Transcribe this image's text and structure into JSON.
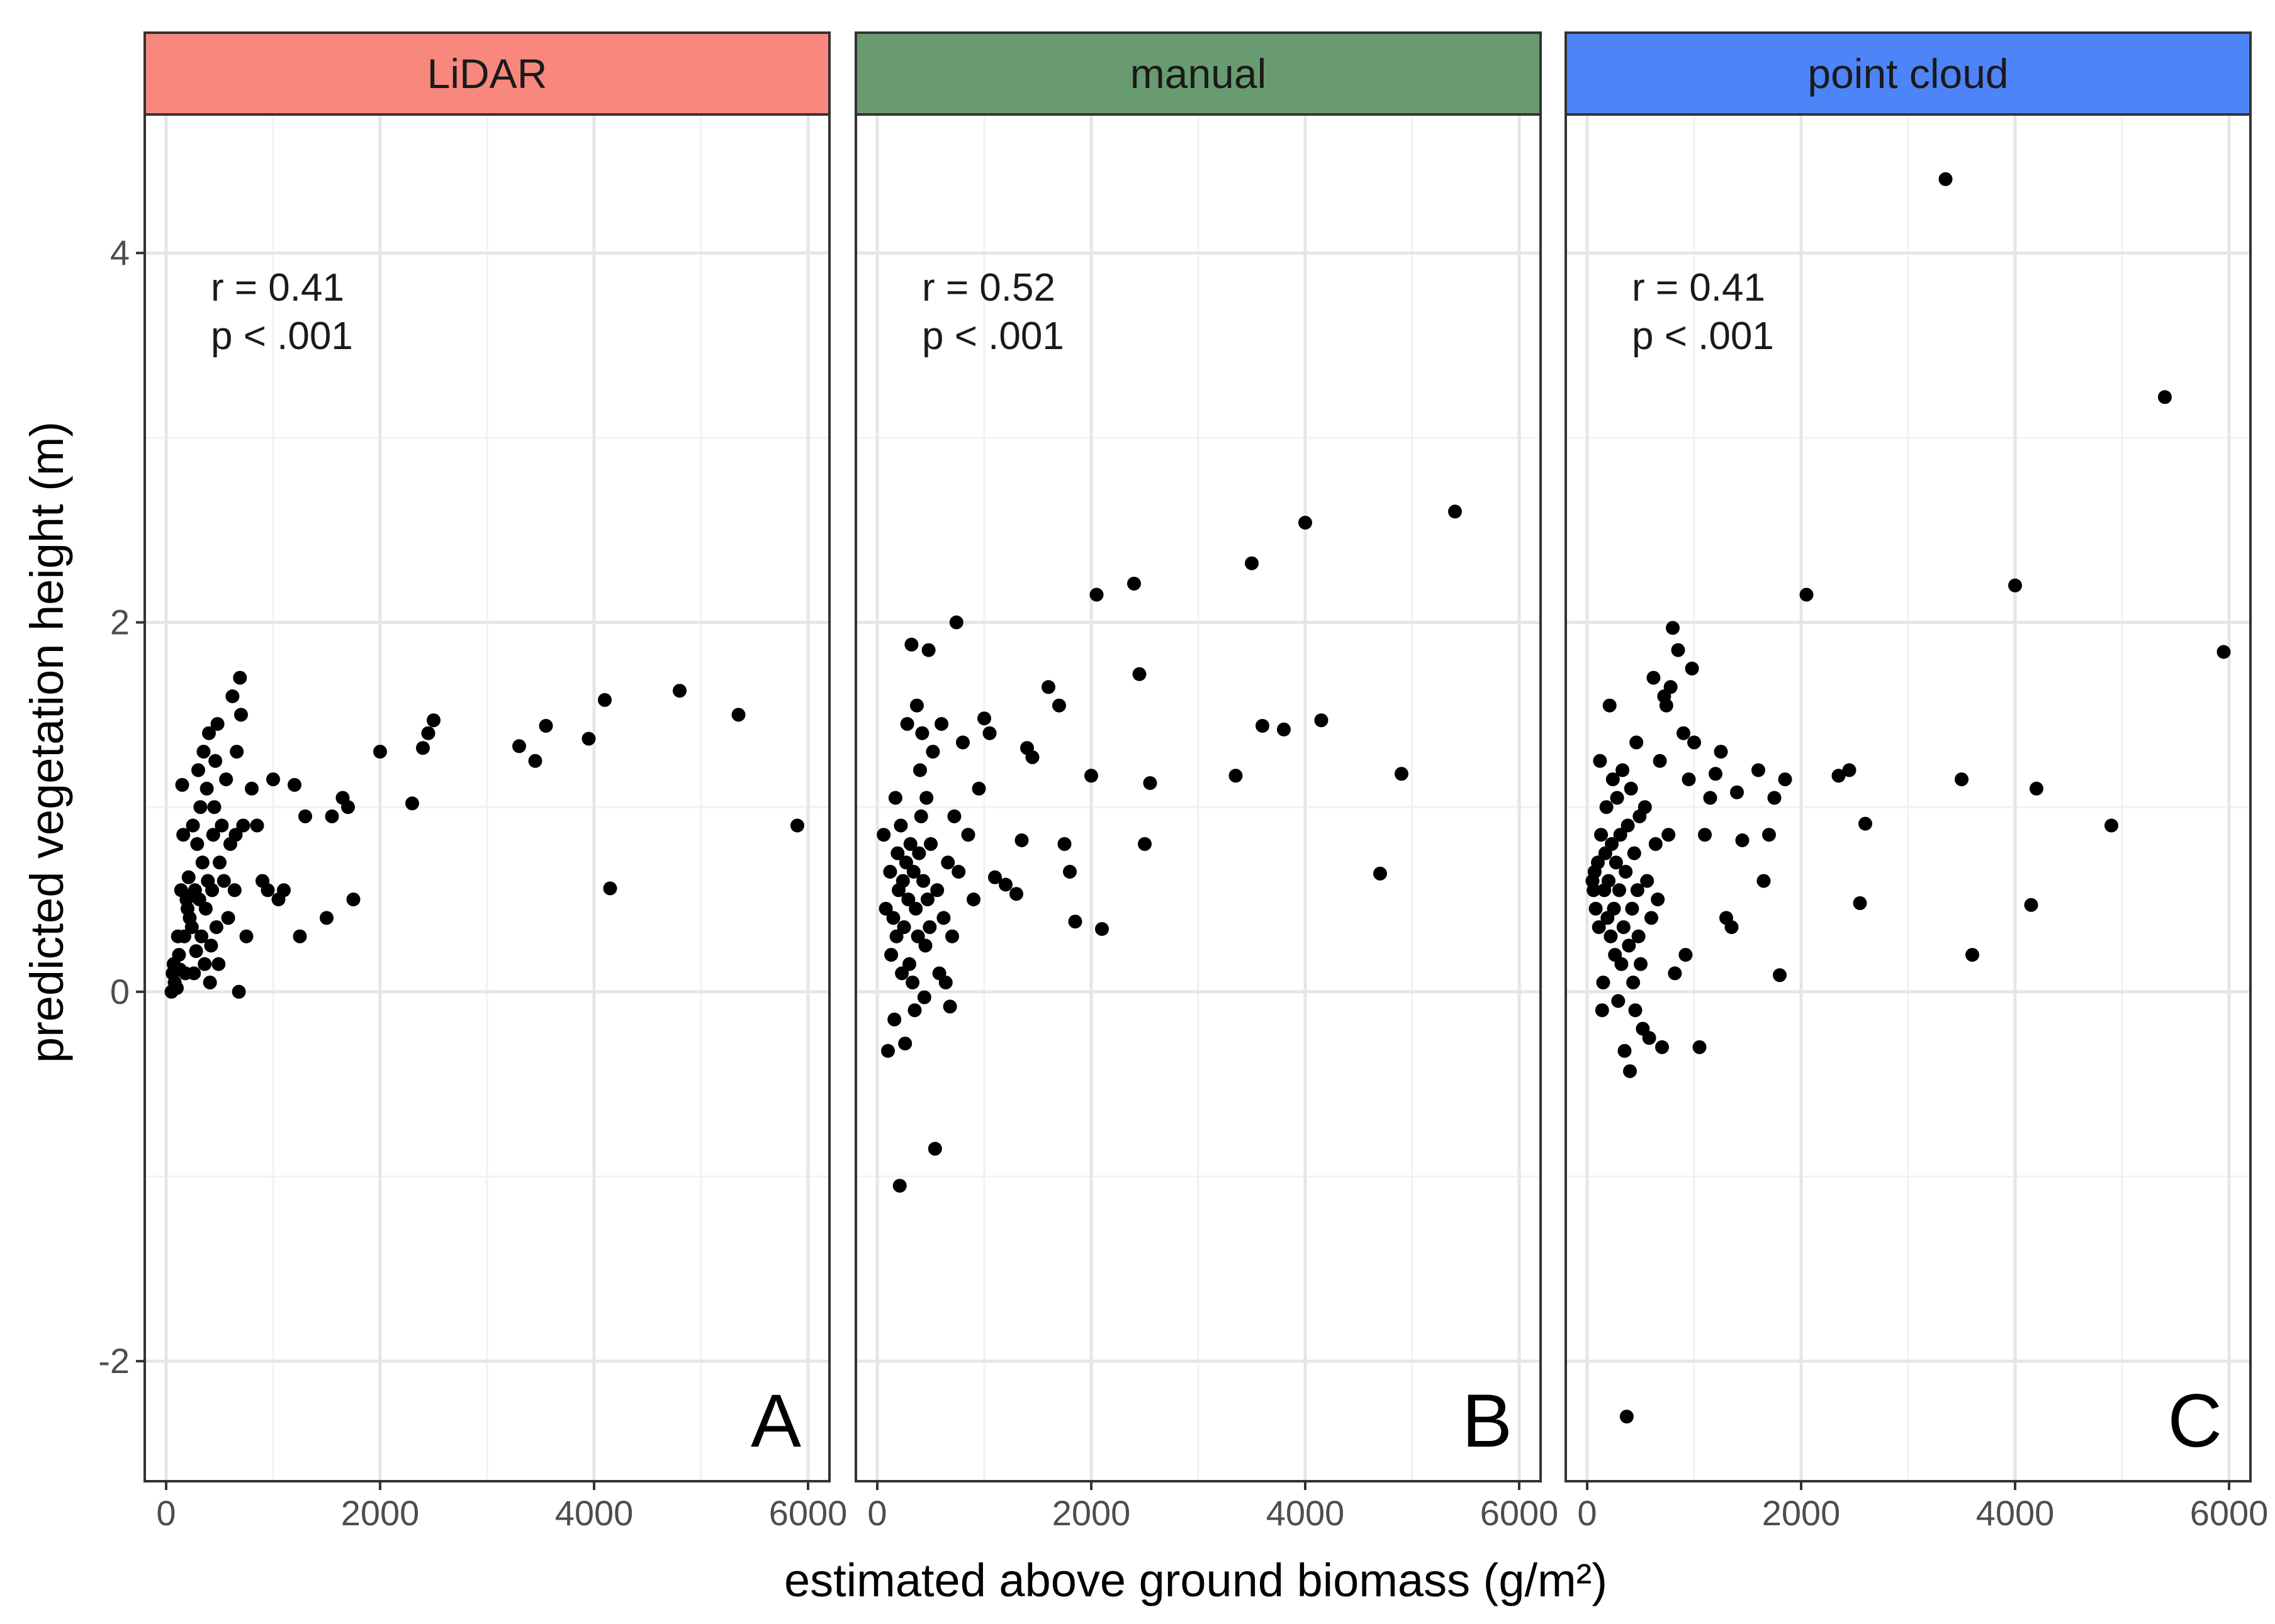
{
  "chart_data": {
    "type": "scatter",
    "layout": "faceted, 3 panels sharing axes",
    "xlabel": "estimated above ground biomass (g/m²)",
    "ylabel": "predicted vegetation height (m)",
    "xlim": [
      -200,
      6200
    ],
    "ylim": [
      -2.65,
      4.75
    ],
    "x_ticks": [
      0,
      2000,
      4000,
      6000
    ],
    "y_ticks": [
      -2,
      0,
      2,
      4
    ],
    "grid": true,
    "panels": [
      {
        "strip": "LiDAR",
        "strip_color": "#F8877D",
        "letter": "A",
        "stat_r": "r = 0.41",
        "stat_p": "p < .001",
        "points": [
          [
            50,
            0.0
          ],
          [
            60,
            0.1
          ],
          [
            70,
            0.15
          ],
          [
            80,
            0.05
          ],
          [
            100,
            0.02
          ],
          [
            110,
            0.3
          ],
          [
            120,
            0.2
          ],
          [
            130,
            0.12
          ],
          [
            140,
            0.55
          ],
          [
            150,
            1.12
          ],
          [
            160,
            0.85
          ],
          [
            170,
            0.3
          ],
          [
            180,
            0.1
          ],
          [
            190,
            0.5
          ],
          [
            200,
            0.45
          ],
          [
            210,
            0.62
          ],
          [
            220,
            0.4
          ],
          [
            230,
            0.52
          ],
          [
            240,
            0.35
          ],
          [
            250,
            0.9
          ],
          [
            260,
            0.1
          ],
          [
            270,
            0.55
          ],
          [
            280,
            0.22
          ],
          [
            290,
            0.8
          ],
          [
            300,
            1.2
          ],
          [
            310,
            0.5
          ],
          [
            320,
            1.0
          ],
          [
            330,
            0.3
          ],
          [
            340,
            0.7
          ],
          [
            350,
            1.3
          ],
          [
            360,
            0.15
          ],
          [
            370,
            0.45
          ],
          [
            380,
            1.1
          ],
          [
            390,
            0.6
          ],
          [
            400,
            1.4
          ],
          [
            410,
            0.05
          ],
          [
            420,
            0.25
          ],
          [
            430,
            0.55
          ],
          [
            440,
            0.85
          ],
          [
            450,
            1.0
          ],
          [
            460,
            1.25
          ],
          [
            470,
            0.35
          ],
          [
            480,
            1.45
          ],
          [
            490,
            0.15
          ],
          [
            500,
            0.7
          ],
          [
            520,
            0.9
          ],
          [
            540,
            0.6
          ],
          [
            560,
            1.15
          ],
          [
            580,
            0.4
          ],
          [
            600,
            0.8
          ],
          [
            620,
            1.6
          ],
          [
            640,
            0.55
          ],
          [
            650,
            0.85
          ],
          [
            660,
            1.3
          ],
          [
            680,
            0.0
          ],
          [
            690,
            1.7
          ],
          [
            700,
            1.5
          ],
          [
            720,
            0.9
          ],
          [
            750,
            0.3
          ],
          [
            800,
            1.1
          ],
          [
            850,
            0.9
          ],
          [
            900,
            0.6
          ],
          [
            950,
            0.55
          ],
          [
            1000,
            1.15
          ],
          [
            1050,
            0.5
          ],
          [
            1100,
            0.55
          ],
          [
            1200,
            1.12
          ],
          [
            1250,
            0.3
          ],
          [
            1300,
            0.95
          ],
          [
            1500,
            0.4
          ],
          [
            1550,
            0.95
          ],
          [
            1650,
            1.05
          ],
          [
            1700,
            1.0
          ],
          [
            1750,
            0.5
          ],
          [
            2000,
            1.3
          ],
          [
            2300,
            1.02
          ],
          [
            2400,
            1.32
          ],
          [
            2450,
            1.4
          ],
          [
            2500,
            1.47
          ],
          [
            3300,
            1.33
          ],
          [
            3450,
            1.25
          ],
          [
            3550,
            1.44
          ],
          [
            3950,
            1.37
          ],
          [
            4100,
            1.58
          ],
          [
            4150,
            0.56
          ],
          [
            4800,
            1.63
          ],
          [
            5350,
            1.5
          ],
          [
            5900,
            0.9
          ]
        ]
      },
      {
        "strip": "manual",
        "strip_color": "#699B71",
        "letter": "B",
        "stat_r": "r = 0.52",
        "stat_p": "p < .001",
        "points": [
          [
            60,
            0.85
          ],
          [
            80,
            0.45
          ],
          [
            100,
            -0.32
          ],
          [
            120,
            0.65
          ],
          [
            130,
            0.2
          ],
          [
            150,
            0.4
          ],
          [
            160,
            -0.15
          ],
          [
            170,
            1.05
          ],
          [
            180,
            0.3
          ],
          [
            190,
            0.75
          ],
          [
            200,
            0.55
          ],
          [
            210,
            -1.05
          ],
          [
            220,
            0.9
          ],
          [
            230,
            0.1
          ],
          [
            240,
            0.6
          ],
          [
            250,
            0.35
          ],
          [
            260,
            -0.28
          ],
          [
            270,
            0.7
          ],
          [
            280,
            1.45
          ],
          [
            290,
            0.5
          ],
          [
            300,
            0.15
          ],
          [
            310,
            0.8
          ],
          [
            320,
            1.88
          ],
          [
            330,
            0.05
          ],
          [
            340,
            0.65
          ],
          [
            350,
            -0.1
          ],
          [
            360,
            0.45
          ],
          [
            370,
            1.55
          ],
          [
            380,
            0.3
          ],
          [
            390,
            0.75
          ],
          [
            400,
            1.2
          ],
          [
            410,
            0.95
          ],
          [
            420,
            1.4
          ],
          [
            430,
            0.6
          ],
          [
            440,
            -0.03
          ],
          [
            450,
            0.25
          ],
          [
            460,
            1.05
          ],
          [
            470,
            0.5
          ],
          [
            480,
            1.85
          ],
          [
            490,
            0.35
          ],
          [
            500,
            0.8
          ],
          [
            520,
            1.3
          ],
          [
            540,
            -0.85
          ],
          [
            560,
            0.55
          ],
          [
            580,
            0.1
          ],
          [
            600,
            1.45
          ],
          [
            620,
            0.4
          ],
          [
            640,
            0.05
          ],
          [
            660,
            0.7
          ],
          [
            680,
            -0.08
          ],
          [
            700,
            0.3
          ],
          [
            720,
            0.95
          ],
          [
            740,
            2.0
          ],
          [
            760,
            0.65
          ],
          [
            800,
            1.35
          ],
          [
            850,
            0.85
          ],
          [
            900,
            0.5
          ],
          [
            950,
            1.1
          ],
          [
            1000,
            1.48
          ],
          [
            1050,
            1.4
          ],
          [
            1100,
            0.62
          ],
          [
            1200,
            0.58
          ],
          [
            1300,
            0.53
          ],
          [
            1350,
            0.82
          ],
          [
            1400,
            1.32
          ],
          [
            1450,
            1.27
          ],
          [
            1600,
            1.65
          ],
          [
            1700,
            1.55
          ],
          [
            1750,
            0.8
          ],
          [
            1800,
            0.65
          ],
          [
            1850,
            0.38
          ],
          [
            2000,
            1.17
          ],
          [
            2050,
            2.15
          ],
          [
            2100,
            0.34
          ],
          [
            2400,
            2.21
          ],
          [
            2450,
            1.72
          ],
          [
            2500,
            0.8
          ],
          [
            2550,
            1.13
          ],
          [
            3350,
            1.17
          ],
          [
            3500,
            2.32
          ],
          [
            3600,
            1.44
          ],
          [
            3800,
            1.42
          ],
          [
            4000,
            2.54
          ],
          [
            4150,
            1.47
          ],
          [
            4700,
            0.64
          ],
          [
            4900,
            1.18
          ],
          [
            5400,
            2.6
          ]
        ]
      },
      {
        "strip": "point cloud",
        "strip_color": "#4D84F7",
        "letter": "C",
        "stat_r": "r = 0.41",
        "stat_p": "p < .001",
        "points": [
          [
            50,
            0.6
          ],
          [
            60,
            0.55
          ],
          [
            70,
            0.65
          ],
          [
            80,
            0.45
          ],
          [
            100,
            0.7
          ],
          [
            110,
            0.35
          ],
          [
            120,
            1.25
          ],
          [
            130,
            0.85
          ],
          [
            140,
            -0.1
          ],
          [
            150,
            0.05
          ],
          [
            160,
            0.55
          ],
          [
            170,
            0.75
          ],
          [
            180,
            1.0
          ],
          [
            190,
            0.4
          ],
          [
            200,
            0.6
          ],
          [
            210,
            1.55
          ],
          [
            220,
            0.3
          ],
          [
            230,
            0.8
          ],
          [
            240,
            1.15
          ],
          [
            250,
            0.45
          ],
          [
            260,
            0.2
          ],
          [
            270,
            0.7
          ],
          [
            280,
            1.05
          ],
          [
            290,
            -0.05
          ],
          [
            300,
            0.55
          ],
          [
            310,
            0.85
          ],
          [
            320,
            0.15
          ],
          [
            330,
            1.2
          ],
          [
            340,
            0.35
          ],
          [
            350,
            -0.32
          ],
          [
            360,
            0.65
          ],
          [
            370,
            -2.3
          ],
          [
            380,
            0.9
          ],
          [
            390,
            0.25
          ],
          [
            400,
            -0.43
          ],
          [
            410,
            1.1
          ],
          [
            420,
            0.45
          ],
          [
            430,
            0.05
          ],
          [
            440,
            0.75
          ],
          [
            450,
            -0.1
          ],
          [
            460,
            1.35
          ],
          [
            470,
            0.55
          ],
          [
            480,
            0.3
          ],
          [
            490,
            0.95
          ],
          [
            500,
            0.15
          ],
          [
            520,
            -0.2
          ],
          [
            540,
            1.0
          ],
          [
            560,
            0.6
          ],
          [
            580,
            -0.25
          ],
          [
            600,
            0.4
          ],
          [
            620,
            1.7
          ],
          [
            640,
            0.8
          ],
          [
            660,
            0.5
          ],
          [
            680,
            1.25
          ],
          [
            700,
            -0.3
          ],
          [
            720,
            1.6
          ],
          [
            740,
            1.55
          ],
          [
            760,
            0.85
          ],
          [
            780,
            1.65
          ],
          [
            800,
            1.97
          ],
          [
            820,
            0.1
          ],
          [
            850,
            1.85
          ],
          [
            900,
            1.4
          ],
          [
            920,
            0.2
          ],
          [
            950,
            1.15
          ],
          [
            980,
            1.75
          ],
          [
            1000,
            1.35
          ],
          [
            1050,
            -0.3
          ],
          [
            1100,
            0.85
          ],
          [
            1150,
            1.05
          ],
          [
            1200,
            1.18
          ],
          [
            1250,
            1.3
          ],
          [
            1300,
            0.4
          ],
          [
            1350,
            0.35
          ],
          [
            1400,
            1.08
          ],
          [
            1450,
            0.82
          ],
          [
            1600,
            1.2
          ],
          [
            1650,
            0.6
          ],
          [
            1700,
            0.85
          ],
          [
            1750,
            1.05
          ],
          [
            1800,
            0.09
          ],
          [
            1850,
            1.15
          ],
          [
            2050,
            2.15
          ],
          [
            2350,
            1.17
          ],
          [
            2450,
            1.2
          ],
          [
            2550,
            0.48
          ],
          [
            2600,
            0.91
          ],
          [
            3350,
            4.4
          ],
          [
            3500,
            1.15
          ],
          [
            3600,
            0.2
          ],
          [
            4000,
            2.2
          ],
          [
            4150,
            0.47
          ],
          [
            4200,
            1.1
          ],
          [
            4900,
            0.9
          ],
          [
            5400,
            3.22
          ],
          [
            5950,
            1.84
          ]
        ]
      }
    ]
  }
}
